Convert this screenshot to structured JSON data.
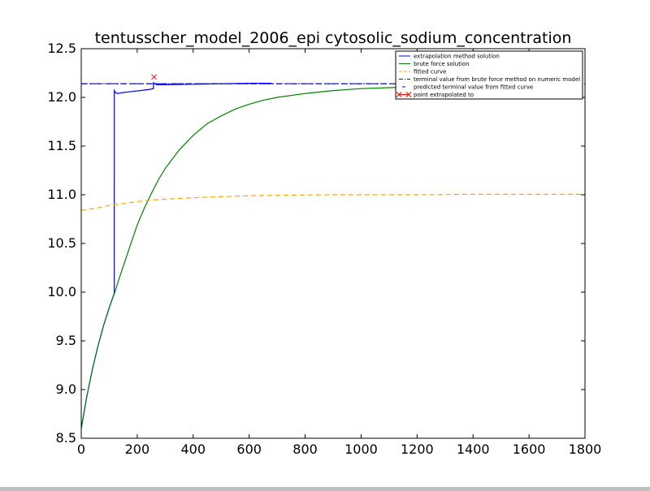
{
  "chart_data": {
    "type": "line",
    "title": "tentusscher_model_2006_epi cytosolic_sodium_concentration",
    "xlabel": "",
    "ylabel": "",
    "xlim": [
      0,
      1800
    ],
    "ylim": [
      8.5,
      12.5
    ],
    "x_ticks": [
      0,
      200,
      400,
      600,
      800,
      1000,
      1200,
      1400,
      1600,
      1800
    ],
    "y_ticks": [
      8.5,
      9.0,
      9.5,
      10.0,
      10.5,
      11.0,
      11.5,
      12.0,
      12.5
    ],
    "x_tick_labels": [
      "0",
      "200",
      "400",
      "600",
      "800",
      "1000",
      "1200",
      "1400",
      "1600",
      "1800"
    ],
    "y_tick_labels": [
      "8.5",
      "9.0",
      "9.5",
      "10.0",
      "10.5",
      "11.0",
      "11.5",
      "12.0",
      "12.5"
    ],
    "grid": false,
    "legend_position": "top-right",
    "series": [
      {
        "name": "extrapolation method solution",
        "color": "#0000ff",
        "style": "solid",
        "x": [
          0,
          20,
          40,
          60,
          80,
          100,
          118,
          118.1,
          122,
          130,
          150,
          180,
          210,
          240,
          258,
          258.1,
          262,
          270,
          300,
          400,
          500,
          600,
          680
        ],
        "y": [
          8.6,
          8.93,
          9.21,
          9.45,
          9.66,
          9.84,
          9.99,
          12.07,
          12.05,
          12.04,
          12.05,
          12.06,
          12.07,
          12.08,
          12.09,
          12.15,
          12.14,
          12.13,
          12.13,
          12.135,
          12.14,
          12.145,
          12.145
        ]
      },
      {
        "name": "brute force solution",
        "color": "#008000",
        "style": "solid",
        "x": [
          0,
          20,
          40,
          60,
          80,
          100,
          120,
          140,
          160,
          180,
          200,
          225,
          250,
          275,
          300,
          350,
          400,
          450,
          500,
          550,
          600,
          650,
          700,
          800,
          900,
          1000,
          1100,
          1200
        ],
        "y": [
          8.6,
          8.93,
          9.21,
          9.45,
          9.66,
          9.84,
          10.0,
          10.18,
          10.35,
          10.52,
          10.69,
          10.86,
          11.01,
          11.15,
          11.27,
          11.46,
          11.61,
          11.73,
          11.81,
          11.88,
          11.93,
          11.97,
          12.0,
          12.04,
          12.07,
          12.09,
          12.1,
          12.11
        ]
      },
      {
        "name": "fitted curve",
        "color": "#ffa500",
        "style": "dashed",
        "x": [
          0,
          50,
          100,
          150,
          200,
          250,
          300,
          400,
          500,
          600,
          700,
          800,
          900,
          1000,
          1200,
          1400,
          1600,
          1800
        ],
        "y": [
          10.84,
          10.86,
          10.89,
          10.91,
          10.93,
          10.945,
          10.955,
          10.97,
          10.98,
          10.99,
          10.995,
          10.998,
          11.0,
          11.0,
          11.0,
          11.005,
          11.005,
          11.005
        ]
      },
      {
        "name": "terminal value from brute force method on numeric model",
        "color": "#0000ff",
        "style": "dashdot",
        "x": [
          0,
          1800
        ],
        "y": [
          12.14,
          12.14
        ]
      },
      {
        "name": "predicted terminal value from fitted curve",
        "color": "#0000ff",
        "style": "dashed",
        "x": [
          0,
          1800
        ],
        "y": [
          12.14,
          12.14
        ]
      },
      {
        "name": "point extrapolated to",
        "color": "#ff0000",
        "style": "marker-x",
        "x": [
          260
        ],
        "y": [
          12.21
        ]
      }
    ]
  }
}
